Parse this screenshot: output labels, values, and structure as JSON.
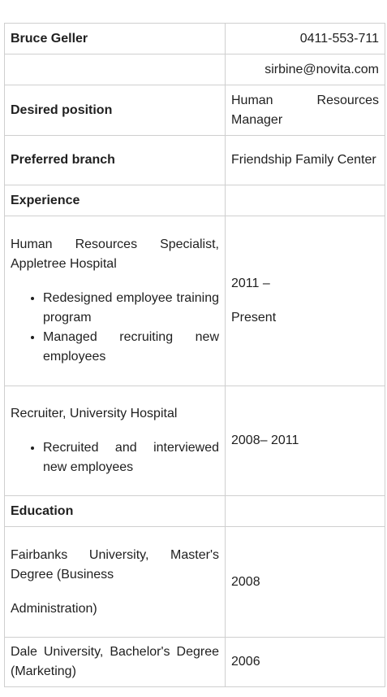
{
  "header": {
    "name": "Bruce Geller",
    "phone": "0411-553-711",
    "email": "sirbine@novita.com"
  },
  "position": {
    "label": "Desired position",
    "value": "Human Resources Manager"
  },
  "branch": {
    "label": "Preferred branch",
    "value": "Friendship Family Center"
  },
  "experience": {
    "heading": "Experience",
    "jobs": [
      {
        "title": "Human Resources Specialist, Appletree Hospital",
        "bullets": [
          "Redesigned employee training program",
          "Managed recruiting new employees"
        ],
        "dates_start": "2011 –",
        "dates_end": "Present"
      },
      {
        "title": "Recruiter, University Hospital",
        "bullets": [
          "Recruited and interviewed new employees"
        ],
        "dates": "2008– 2011"
      }
    ]
  },
  "education": {
    "heading": "Education",
    "items": [
      {
        "line1": "Fairbanks University, Master's Degree (Business",
        "line2": "Administration)",
        "year": "2008"
      },
      {
        "line1": "Dale University, Bachelor's Degree (Marketing)",
        "year": "2006"
      }
    ]
  }
}
